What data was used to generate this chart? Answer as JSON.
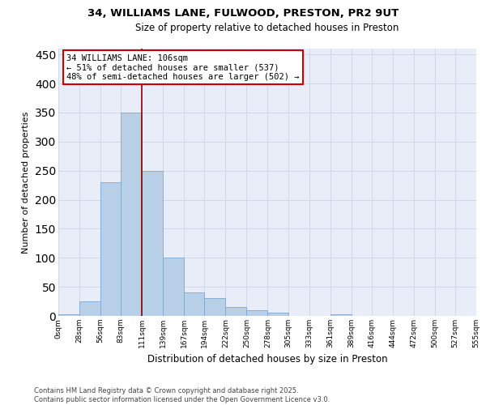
{
  "title_line1": "34, WILLIAMS LANE, FULWOOD, PRESTON, PR2 9UT",
  "title_line2": "Size of property relative to detached houses in Preston",
  "xlabel": "Distribution of detached houses by size in Preston",
  "ylabel": "Number of detached properties",
  "footer_line1": "Contains HM Land Registry data © Crown copyright and database right 2025.",
  "footer_line2": "Contains public sector information licensed under the Open Government Licence v3.0.",
  "annotation_line1": "34 WILLIAMS LANE: 106sqm",
  "annotation_line2": "← 51% of detached houses are smaller (537)",
  "annotation_line3": "48% of semi-detached houses are larger (502) →",
  "bar_edges": [
    0,
    28,
    56,
    83,
    111,
    139,
    167,
    194,
    222,
    250,
    278,
    305,
    333,
    361,
    389,
    416,
    444,
    472,
    500,
    527,
    555
  ],
  "bar_heights": [
    3,
    25,
    230,
    350,
    250,
    100,
    40,
    30,
    15,
    10,
    5,
    0,
    0,
    3,
    0,
    0,
    0,
    0,
    0,
    0
  ],
  "bar_color": "#b8cfe8",
  "bar_edge_color": "#7ca8d4",
  "vline_color": "#8b0000",
  "vline_x": 111,
  "annotation_box_edgecolor": "#cc0000",
  "ylim": [
    0,
    460
  ],
  "xlim": [
    0,
    555
  ],
  "yticks": [
    0,
    50,
    100,
    150,
    200,
    250,
    300,
    350,
    400,
    450
  ],
  "background_color": "#e8edf7",
  "grid_color": "#d0d8e8",
  "tick_labels": [
    "0sqm",
    "28sqm",
    "56sqm",
    "83sqm",
    "111sqm",
    "139sqm",
    "167sqm",
    "194sqm",
    "222sqm",
    "250sqm",
    "278sqm",
    "305sqm",
    "333sqm",
    "361sqm",
    "389sqm",
    "416sqm",
    "444sqm",
    "472sqm",
    "500sqm",
    "527sqm",
    "555sqm"
  ],
  "title_fontsize": 9.5,
  "subtitle_fontsize": 8.5,
  "ylabel_fontsize": 8,
  "xlabel_fontsize": 8.5,
  "tick_fontsize": 6.5,
  "footer_fontsize": 6,
  "annotation_fontsize": 7.5
}
